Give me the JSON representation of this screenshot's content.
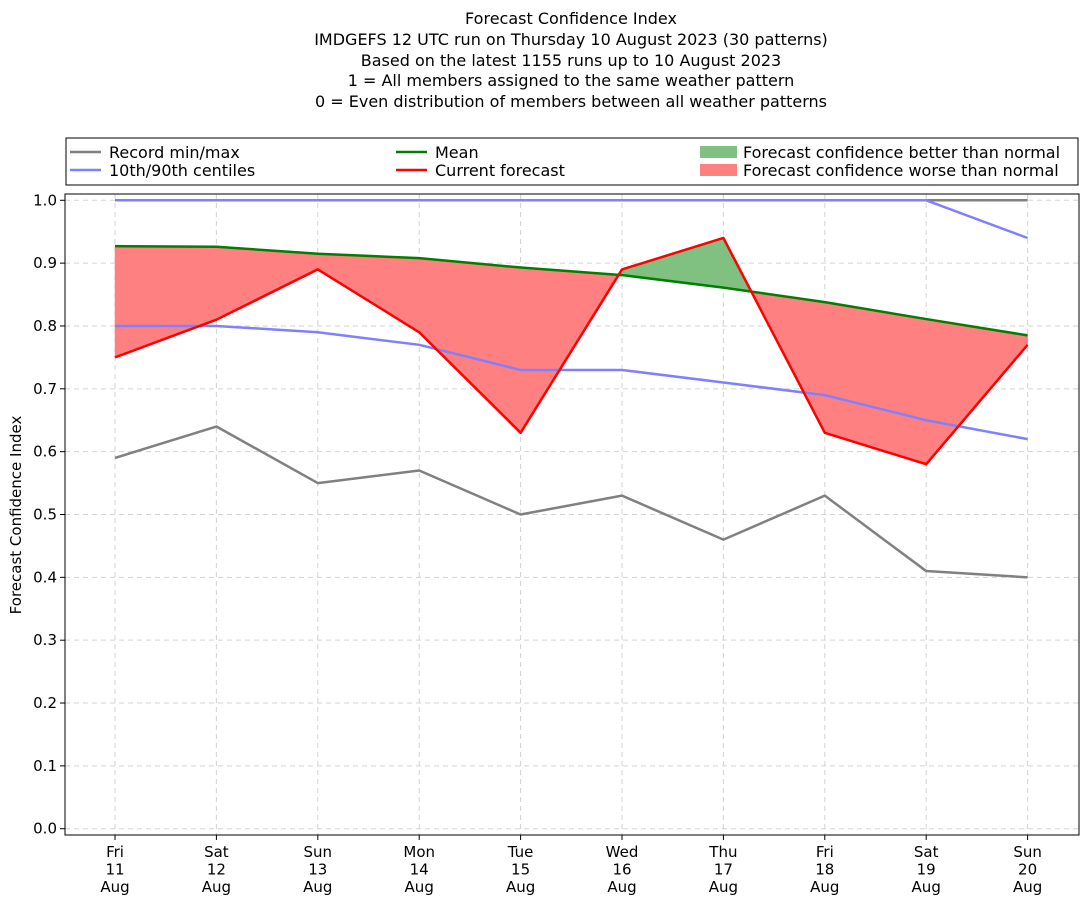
{
  "chart_data": {
    "type": "line",
    "title_lines": [
      "Forecast Confidence Index",
      "IMDGEFS 12 UTC run on Thursday 10 August 2023 (30 patterns)",
      "Based on the latest 1155 runs up to 10 August 2023",
      "1 = All members assigned to the same weather pattern",
      "0 = Even distribution of members between all weather patterns"
    ],
    "xlabel": "",
    "ylabel": "Forecast Confidence Index",
    "x_tick_labels": [
      [
        "Fri",
        "11",
        "Aug"
      ],
      [
        "Sat",
        "12",
        "Aug"
      ],
      [
        "Sun",
        "13",
        "Aug"
      ],
      [
        "Mon",
        "14",
        "Aug"
      ],
      [
        "Tue",
        "15",
        "Aug"
      ],
      [
        "Wed",
        "16",
        "Aug"
      ],
      [
        "Thu",
        "17",
        "Aug"
      ],
      [
        "Fri",
        "18",
        "Aug"
      ],
      [
        "Sat",
        "19",
        "Aug"
      ],
      [
        "Sun",
        "20",
        "Aug"
      ]
    ],
    "ylim": [
      -0.01,
      1.01
    ],
    "yticks": [
      "0.0",
      "0.1",
      "0.2",
      "0.3",
      "0.4",
      "0.5",
      "0.6",
      "0.7",
      "0.8",
      "0.9",
      "1.0"
    ],
    "grid": true,
    "legend_position": "top",
    "series": [
      {
        "key": "record_min",
        "name": "Record min/max",
        "color": "#808080",
        "values": [
          0.59,
          0.64,
          0.55,
          0.57,
          0.5,
          0.53,
          0.46,
          0.53,
          0.41,
          0.4
        ]
      },
      {
        "key": "record_max",
        "name": "Record min/max",
        "color": "#808080",
        "values": [
          1.0,
          1.0,
          1.0,
          1.0,
          1.0,
          1.0,
          1.0,
          1.0,
          1.0,
          1.0
        ]
      },
      {
        "key": "p10",
        "name": "10th/90th centiles",
        "color": "#8080ff",
        "values": [
          0.8,
          0.8,
          0.79,
          0.77,
          0.73,
          0.73,
          0.71,
          0.69,
          0.65,
          0.62
        ]
      },
      {
        "key": "p90",
        "name": "10th/90th centiles",
        "color": "#8080ff",
        "values": [
          1.0,
          1.0,
          1.0,
          1.0,
          1.0,
          1.0,
          1.0,
          1.0,
          1.0,
          0.94
        ]
      },
      {
        "key": "mean",
        "name": "Mean",
        "color": "#008000",
        "values": [
          0.927,
          0.926,
          0.915,
          0.908,
          0.893,
          0.881,
          0.861,
          0.838,
          0.811,
          0.785
        ]
      },
      {
        "key": "current",
        "name": "Current forecast",
        "color": "#ff0000",
        "values": [
          0.75,
          0.81,
          0.89,
          0.79,
          0.63,
          0.89,
          0.94,
          0.63,
          0.58,
          0.77
        ]
      }
    ],
    "fills": {
      "better": {
        "name": "Forecast confidence better than normal",
        "color": "#80c080"
      },
      "worse": {
        "name": "Forecast confidence worse than normal",
        "color": "#ff8080"
      }
    },
    "legend": [
      {
        "label": "Record min/max",
        "kind": "line",
        "color": "#808080"
      },
      {
        "label": "Mean",
        "kind": "line",
        "color": "#008000"
      },
      {
        "label": "Forecast confidence better than normal",
        "kind": "patch",
        "color": "#80c080"
      },
      {
        "label": "10th/90th centiles",
        "kind": "line",
        "color": "#8080ff"
      },
      {
        "label": "Current forecast",
        "kind": "line",
        "color": "#ff0000"
      },
      {
        "label": "Forecast confidence worse than normal",
        "kind": "patch",
        "color": "#ff8080"
      }
    ]
  }
}
